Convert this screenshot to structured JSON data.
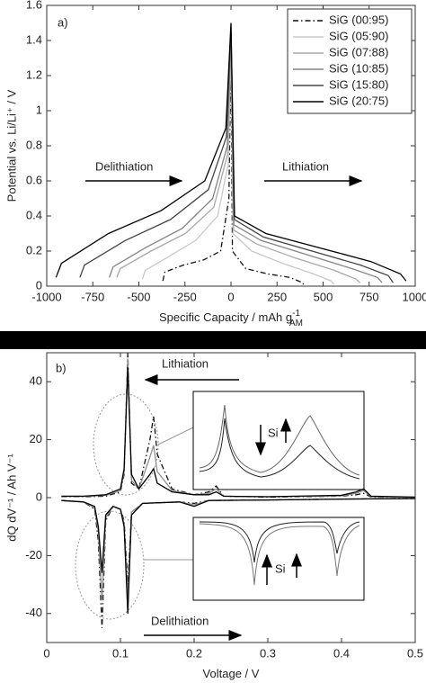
{
  "chart_data": [
    {
      "type": "line",
      "xlabel": {
        "text": "Specific Capacity / mAh g",
        "sup": "-1",
        "sub": "AM"
      },
      "ylabel": "Potential vs. Li/Li⁺ / V",
      "annotations": [
        "a)",
        "Delithiation",
        "Lithiation"
      ],
      "xlim": [
        -1000,
        1000
      ],
      "xticks": [
        -1000,
        -750,
        -500,
        -250,
        0,
        250,
        500,
        750,
        1000
      ],
      "ylim": [
        0,
        1.6
      ],
      "yticks": [
        0,
        0.2,
        0.4,
        0.6,
        0.8,
        1,
        1.2,
        1.4,
        1.6
      ],
      "grid": false,
      "legend": "upper right",
      "series": [
        {
          "name": "SiG (00:95)",
          "color": "#111111",
          "linestyle": "dashdot",
          "x": [
            -370,
            -359,
            -259,
            -148,
            -56,
            -11,
            0,
            8,
            80,
            200,
            320,
            388,
            400
          ],
          "values": [
            0.03,
            0.08,
            0.12,
            0.15,
            0.2,
            0.5,
            1.35,
            0.2,
            0.1,
            0.07,
            0.05,
            0.02,
            0
          ]
        },
        {
          "name": "SiG (05:90)",
          "color": "#c8c8c8",
          "linestyle": "solid",
          "x": [
            -480,
            -466,
            -336,
            -192,
            -72,
            -14,
            0,
            11,
            112,
            280,
            448,
            543,
            560
          ],
          "values": [
            0.04,
            0.09,
            0.17,
            0.26,
            0.4,
            0.7,
            1.4,
            0.3,
            0.2,
            0.13,
            0.07,
            0.03,
            0.01
          ]
        },
        {
          "name": "SiG (07:88)",
          "color": "#a8a8a8",
          "linestyle": "solid",
          "x": [
            -620,
            -601,
            -434,
            -248,
            -93,
            -19,
            0,
            14,
            140,
            350,
            560,
            679,
            700
          ],
          "values": [
            0.05,
            0.1,
            0.2,
            0.3,
            0.45,
            0.75,
            1.42,
            0.32,
            0.24,
            0.16,
            0.09,
            0.04,
            0.02
          ]
        },
        {
          "name": "SiG (10:85)",
          "color": "#848484",
          "linestyle": "solid",
          "x": [
            -660,
            -640,
            -462,
            -264,
            -99,
            -20,
            0,
            16,
            164,
            410,
            656,
            795,
            820
          ],
          "values": [
            0.05,
            0.11,
            0.22,
            0.33,
            0.5,
            0.8,
            1.45,
            0.35,
            0.26,
            0.18,
            0.1,
            0.05,
            0.02
          ]
        },
        {
          "name": "SiG (15:80)",
          "color": "#444444",
          "linestyle": "solid",
          "x": [
            -820,
            -795,
            -574,
            -328,
            -123,
            -25,
            0,
            18,
            176,
            440,
            704,
            854,
            880
          ],
          "values": [
            0.05,
            0.12,
            0.26,
            0.38,
            0.55,
            0.85,
            1.48,
            0.38,
            0.28,
            0.2,
            0.12,
            0.06,
            0.02
          ]
        },
        {
          "name": "SiG (20:75)",
          "color": "#000000",
          "linestyle": "solid",
          "x": [
            -950,
            -920,
            -665,
            -380,
            -142,
            -28,
            0,
            19,
            190,
            475,
            760,
            920,
            950
          ],
          "values": [
            0.05,
            0.13,
            0.3,
            0.43,
            0.6,
            0.9,
            1.5,
            0.4,
            0.3,
            0.22,
            0.14,
            0.07,
            0.03
          ]
        }
      ]
    },
    {
      "type": "line",
      "xlabel": {
        "text": "Voltage / V"
      },
      "ylabel": "dQ dV⁻¹ / Ah V⁻¹",
      "annotations": [
        "b)",
        "Lithiation",
        "Delithiation",
        "Si",
        "Si"
      ],
      "xlim": [
        0,
        0.5
      ],
      "xticks": [
        0,
        0.1,
        0.2,
        0.3,
        0.4,
        0.5
      ],
      "ylim": [
        -50,
        50
      ],
      "yticks": [
        -40,
        -20,
        0,
        20,
        40
      ],
      "grid": false,
      "series": [
        {
          "color": "#111111",
          "linestyle": "dashdot",
          "x": [
            0.02,
            0.05,
            0.08,
            0.1,
            0.105,
            0.11,
            0.115,
            0.125,
            0.14,
            0.145,
            0.15,
            0.17,
            0.2,
            0.22,
            0.23,
            0.24,
            0.3,
            0.4,
            0.42,
            0.43,
            0.44,
            0.5,
            null,
            0.02,
            0.05,
            0.065,
            0.07,
            0.075,
            0.08,
            0.09,
            0.1,
            0.105,
            0.11,
            0.115,
            0.13,
            0.18,
            0.2,
            0.22,
            0.3,
            0.4,
            0.5
          ],
          "values": [
            0.3,
            0.3,
            0.5,
            2,
            8,
            50,
            5,
            3,
            20,
            28,
            15,
            3,
            1,
            2,
            4,
            0.5,
            0.2,
            0.5,
            1,
            1.5,
            0.2,
            0.1,
            null,
            -1,
            -1.5,
            -4,
            -15,
            -45,
            -8,
            -3,
            -4,
            -8,
            -30,
            -5,
            -2,
            -1.5,
            -2,
            -1,
            -0.8,
            -0.5,
            -0.3
          ]
        },
        {
          "color": "#909090",
          "linestyle": "solid",
          "x": [
            0.02,
            0.05,
            0.08,
            0.1,
            0.105,
            0.11,
            0.115,
            0.125,
            0.14,
            0.145,
            0.15,
            0.17,
            0.2,
            0.22,
            0.23,
            0.24,
            0.3,
            0.4,
            0.42,
            0.43,
            0.44,
            0.5,
            null,
            0.02,
            0.05,
            0.065,
            0.07,
            0.075,
            0.08,
            0.09,
            0.1,
            0.105,
            0.11,
            0.115,
            0.13,
            0.18,
            0.2,
            0.22,
            0.3,
            0.4,
            0.5
          ],
          "values": [
            0.4,
            0.4,
            0.8,
            2.5,
            9,
            48,
            6,
            3,
            14,
            18,
            9,
            2.5,
            1,
            1.5,
            3,
            0.5,
            0.3,
            0.6,
            1.5,
            2.5,
            0.3,
            0.1,
            null,
            -1,
            -1.5,
            -3.5,
            -12,
            -35,
            -7,
            -3,
            -4,
            -9,
            -35,
            -5,
            -2,
            -1.5,
            -2.5,
            -1,
            -0.8,
            -0.5,
            -0.3
          ]
        },
        {
          "color": "#000000",
          "linestyle": "solid",
          "x": [
            0.02,
            0.05,
            0.08,
            0.1,
            0.105,
            0.11,
            0.115,
            0.125,
            0.14,
            0.145,
            0.15,
            0.17,
            0.2,
            0.22,
            0.23,
            0.24,
            0.3,
            0.4,
            0.42,
            0.43,
            0.44,
            0.5,
            null,
            0.02,
            0.05,
            0.065,
            0.07,
            0.075,
            0.08,
            0.09,
            0.1,
            0.105,
            0.11,
            0.115,
            0.13,
            0.18,
            0.2,
            0.22,
            0.3,
            0.4,
            0.5
          ],
          "values": [
            0.5,
            0.5,
            1,
            3,
            10,
            45,
            8,
            3,
            8,
            10,
            5,
            2,
            1,
            1,
            2,
            0.5,
            0.3,
            0.8,
            2,
            3,
            0.5,
            0.2,
            null,
            -1,
            -1.5,
            -3,
            -10,
            -26,
            -6,
            -3,
            -4,
            -10,
            -40,
            -6,
            -2,
            -1.5,
            -3,
            -1,
            -0.8,
            -0.5,
            -0.3
          ]
        }
      ]
    }
  ]
}
